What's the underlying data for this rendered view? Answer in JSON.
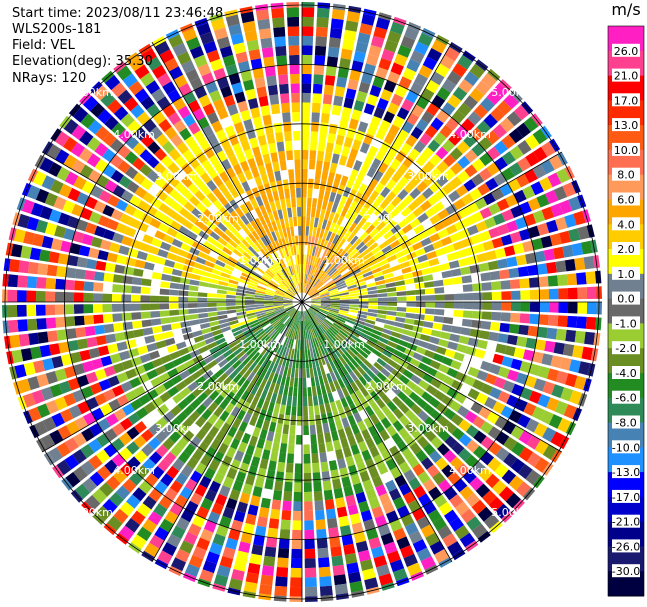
{
  "header": {
    "start_time": "Start time: 2023/08/11 23:46:48",
    "station": "WLS200s-181",
    "field": "Field: VEL",
    "elevation": "Elevation(deg): 35.30",
    "nrays": "NRays: 120"
  },
  "chart_data": {
    "type": "heatmap",
    "subtype": "polar-ppi",
    "field": "VEL",
    "unit": "m/s",
    "nrays": 120,
    "elevation_deg": 35.3,
    "range_rings_km": [
      1.0,
      2.0,
      3.0,
      4.0,
      5.0
    ],
    "ring_labels": [
      "1.00km",
      "2.00km",
      "3.00km",
      "4.00km",
      "5.00km"
    ],
    "azimuth_lines_deg": [
      0,
      30,
      60,
      90,
      120,
      150,
      180,
      210,
      240,
      270,
      300,
      330
    ],
    "max_range_km": 5.05,
    "colorbar": {
      "ticks": [
        "26.0",
        "21.0",
        "17.0",
        "13.0",
        "10.0",
        "8.0",
        "6.0",
        "4.0",
        "2.0",
        "1.0",
        "0.0",
        "-1.0",
        "-2.0",
        "-4.0",
        "-6.0",
        "-8.0",
        "-10.0",
        "-13.0",
        "-17.0",
        "-21.0",
        "-26.0",
        "-30.0"
      ],
      "colors": [
        "#ff1fc3",
        "#ff3f8f",
        "#ff0000",
        "#ff2a00",
        "#ff5a14",
        "#ff6e50",
        "#ff9a5a",
        "#ffa500",
        "#ffcc00",
        "#ffff00",
        "#708090",
        "#696969",
        "#9acd32",
        "#6b8e23",
        "#228b22",
        "#2e8b57",
        "#4682b4",
        "#1e90ff",
        "#0000ff",
        "#0000cd",
        "#00008b",
        "#191970",
        "#000040"
      ]
    }
  }
}
